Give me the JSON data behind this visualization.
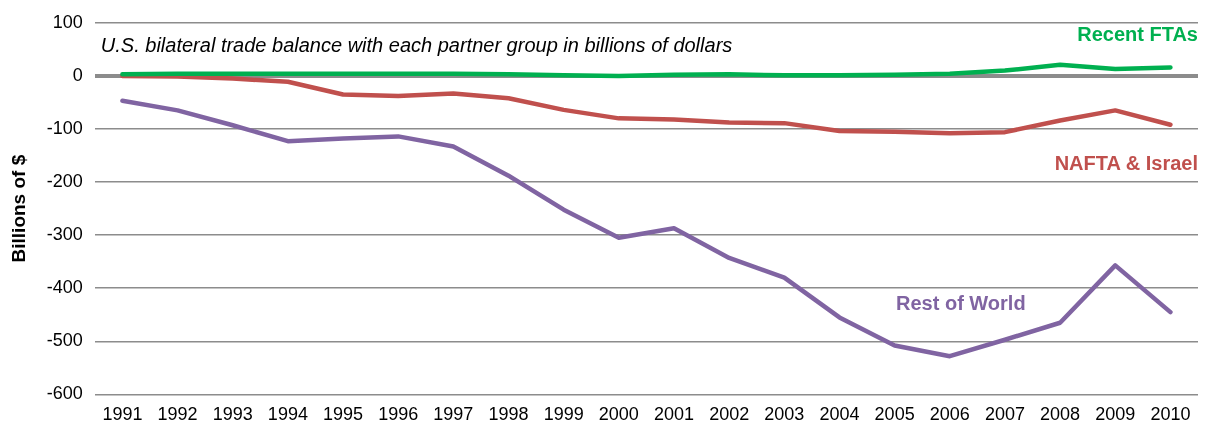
{
  "chart_data": {
    "type": "line",
    "subtitle": "U.S. bilateral trade balance with each partner group in billions of dollars",
    "ylabel": "Billions of $",
    "categories": [
      "1991",
      "1992",
      "1993",
      "1994",
      "1995",
      "1996",
      "1997",
      "1998",
      "1999",
      "2000",
      "2001",
      "2002",
      "2003",
      "2004",
      "2005",
      "2006",
      "2007",
      "2008",
      "2009",
      "2010"
    ],
    "series": [
      {
        "name": "Recent FTAs",
        "color": "#00b050",
        "values": [
          3,
          4,
          4,
          4,
          4,
          4,
          4,
          3,
          1,
          0,
          2,
          3,
          1,
          1,
          2,
          4,
          10,
          21,
          13,
          16
        ]
      },
      {
        "name": "NAFTA & Israel",
        "color": "#c0504d",
        "values": [
          0,
          -1,
          -5,
          -11,
          -35,
          -38,
          -33,
          -42,
          -64,
          -80,
          -82,
          -88,
          -89,
          -104,
          -105,
          -108,
          -106,
          -84,
          -65,
          -92
        ]
      },
      {
        "name": "Rest of World",
        "color": "#8064a2",
        "values": [
          -47,
          -65,
          -93,
          -123,
          -118,
          -114,
          -133,
          -188,
          -252,
          -305,
          -287,
          -343,
          -380,
          -455,
          -508,
          -528,
          -497,
          -465,
          -357,
          -445
        ]
      }
    ],
    "ylim": [
      -600,
      100
    ],
    "yticks": [
      -600,
      -500,
      -400,
      -300,
      -200,
      -100,
      0,
      100
    ],
    "grid": "y",
    "legend": false,
    "marker": "none",
    "line_style": "solid"
  }
}
